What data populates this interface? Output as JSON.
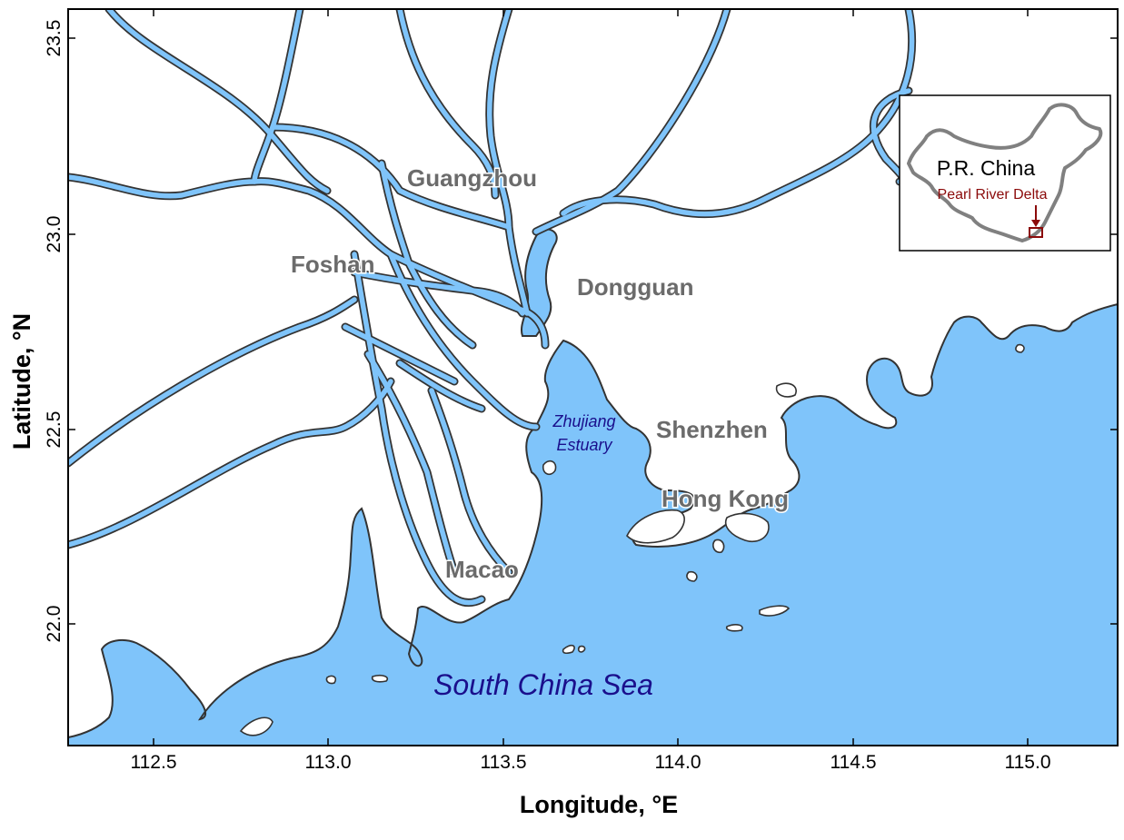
{
  "map": {
    "x_axis_title": "Longitude, °E",
    "y_axis_title": "Latitude, °N",
    "x_ticks": [
      "112.5",
      "113.0",
      "113.5",
      "114.0",
      "114.5",
      "115.0"
    ],
    "y_ticks": [
      "23.5",
      "23.0",
      "22.5",
      "22.0"
    ],
    "colors": {
      "water": "#7fc4fa",
      "land": "#ffffff",
      "coast": "#333333",
      "city": "#6b6b6b",
      "water_label": "#1a0f8c",
      "inset_accent": "#8b0a0a"
    }
  },
  "labels": {
    "guangzhou": "Guangzhou",
    "foshan": "Foshan",
    "dongguan": "Dongguan",
    "shenzhen": "Shenzhen",
    "hong_kong": "Hong Kong",
    "macao": "Macao",
    "estuary_line1": "Zhujiang",
    "estuary_line2": "Estuary",
    "sea": "South China Sea"
  },
  "inset": {
    "title": "P.R. China",
    "subtitle": "Pearl River Delta"
  }
}
